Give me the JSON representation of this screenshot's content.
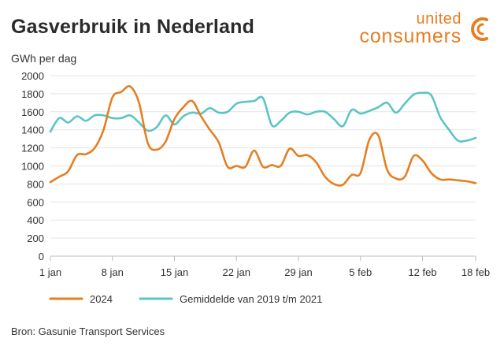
{
  "title": "Gasverbruik in Nederland",
  "brand": {
    "top": "united",
    "bottom": "consumers",
    "logo_icon": "c-logo-icon",
    "color": "#e67e22"
  },
  "source": "Bron: Gasunie Transport Services",
  "chart_data": {
    "type": "line",
    "ylabel": "GWh per dag",
    "ylim": [
      0,
      2000
    ],
    "yticks": [
      0,
      200,
      400,
      600,
      800,
      1000,
      1200,
      1400,
      1600,
      1800,
      2000
    ],
    "xlim": [
      0,
      48
    ],
    "xticks": [
      {
        "x": 0,
        "label": "1 jan"
      },
      {
        "x": 7,
        "label": "8 jan"
      },
      {
        "x": 14,
        "label": "15 jan"
      },
      {
        "x": 21,
        "label": "22 jan"
      },
      {
        "x": 28,
        "label": "29 jan"
      },
      {
        "x": 35,
        "label": "5 feb"
      },
      {
        "x": 42,
        "label": "12 feb"
      },
      {
        "x": 48,
        "label": "18 feb"
      }
    ],
    "grid": "horizontal",
    "legend_position": "bottom-left",
    "series": [
      {
        "name": "2024",
        "color": "#e67e22",
        "x": [
          0,
          1,
          2,
          3,
          4,
          5,
          6,
          7,
          8,
          9,
          10,
          11,
          12,
          13,
          14,
          15,
          16,
          17,
          18,
          19,
          20,
          21,
          22,
          23,
          24,
          25,
          26,
          27,
          28,
          29,
          30,
          31,
          32,
          33,
          34,
          35,
          36,
          37,
          38,
          39,
          40,
          41,
          42,
          43,
          44,
          45,
          46,
          47,
          48
        ],
        "values": [
          820,
          880,
          940,
          1120,
          1130,
          1200,
          1400,
          1760,
          1820,
          1880,
          1700,
          1250,
          1180,
          1270,
          1520,
          1650,
          1720,
          1550,
          1400,
          1260,
          990,
          1000,
          990,
          1170,
          990,
          1010,
          1000,
          1190,
          1110,
          1120,
          1040,
          880,
          800,
          790,
          900,
          920,
          1290,
          1340,
          960,
          860,
          880,
          1110,
          1060,
          920,
          850,
          850,
          840,
          830,
          810
        ]
      },
      {
        "name": "Gemiddelde van 2019 t/m 2021",
        "color": "#5bc5c4",
        "x": [
          0,
          1,
          2,
          3,
          4,
          5,
          6,
          7,
          8,
          9,
          10,
          11,
          12,
          13,
          14,
          15,
          16,
          17,
          18,
          19,
          20,
          21,
          22,
          23,
          24,
          25,
          26,
          27,
          28,
          29,
          30,
          31,
          32,
          33,
          34,
          35,
          36,
          37,
          38,
          39,
          40,
          41,
          42,
          43,
          44,
          45,
          46,
          47,
          48
        ],
        "values": [
          1380,
          1530,
          1480,
          1550,
          1500,
          1560,
          1560,
          1530,
          1530,
          1560,
          1480,
          1390,
          1430,
          1560,
          1460,
          1550,
          1590,
          1580,
          1640,
          1590,
          1600,
          1690,
          1710,
          1720,
          1750,
          1450,
          1500,
          1590,
          1600,
          1570,
          1600,
          1600,
          1520,
          1440,
          1620,
          1580,
          1610,
          1650,
          1700,
          1590,
          1690,
          1790,
          1810,
          1780,
          1540,
          1400,
          1280,
          1280,
          1310
        ]
      }
    ]
  }
}
